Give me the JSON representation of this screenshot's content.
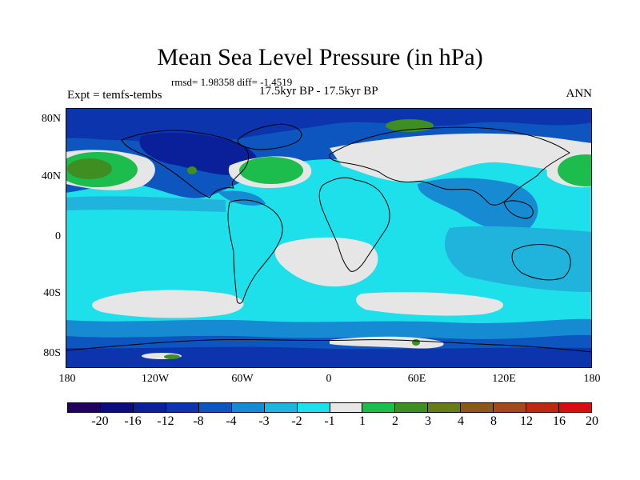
{
  "title": "Mean Sea Level Pressure (in hPa)",
  "stats": "rmsd= 1.98358 diff= -1.4519",
  "expt": "Expt = temfs-tembs",
  "period": "17.5kyr BP - 17.5kyr BP",
  "season": "ANN",
  "lat_labels": [
    "80N",
    "40N",
    "0",
    "40S",
    "80S"
  ],
  "lon_labels": [
    "180",
    "120W",
    "60W",
    "0",
    "60E",
    "120E",
    "180"
  ],
  "colorbar": {
    "colors": [
      "#21005e",
      "#0c0c80",
      "#0a209a",
      "#0b34ad",
      "#0d55bf",
      "#168bd2",
      "#20b4dc",
      "#1ee0ea",
      "#e6e6e6",
      "#1dbd4d",
      "#3f8e22",
      "#667c18",
      "#8a5a1a",
      "#a24a1a",
      "#b82a14",
      "#d40f0f"
    ],
    "labels": [
      "-20",
      "-16",
      "-12",
      "-8",
      "-4",
      "-3",
      "-2",
      "-1",
      "1",
      "2",
      "3",
      "4",
      "8",
      "12",
      "16",
      "20"
    ]
  },
  "map_colors": {
    "base": "#1ee0ea",
    "mid_cyan": "#20b4dc",
    "blue": "#168bd2",
    "dark_blue": "#0d55bf",
    "navy": "#0b34ad",
    "deep_navy": "#0a209a",
    "gray": "#e6e6e6",
    "green": "#1dbd4d",
    "dark_green": "#3f8e22",
    "olive": "#667c18"
  }
}
